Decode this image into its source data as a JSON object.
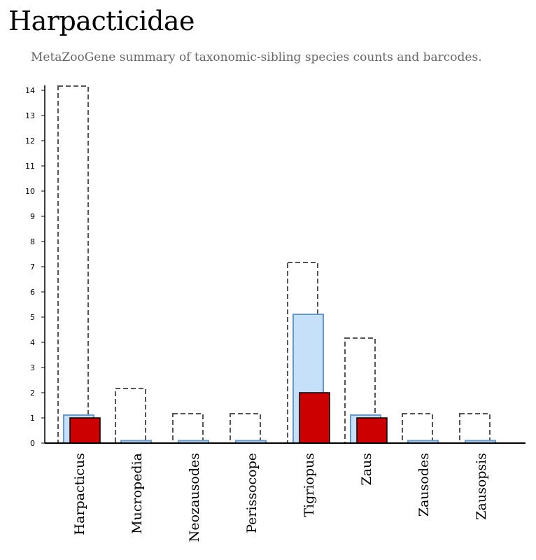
{
  "page": {
    "title": "Harpacticidae",
    "subtitle": "MetaZooGene summary of taxonomic-sibling species counts and barcodes."
  },
  "chart_data": {
    "type": "bar",
    "categories": [
      "Harpacticus",
      "Mucropedia",
      "Neozausodes",
      "Perissocope",
      "Tigriopus",
      "Zaus",
      "Zausodes",
      "Zausopsis"
    ],
    "series": [
      {
        "values": [
          14,
          2,
          1,
          1,
          7,
          4,
          1,
          1
        ],
        "style": "dashed-outline",
        "color": "#555555"
      },
      {
        "values": [
          1,
          0,
          0,
          0,
          5,
          1,
          0,
          0
        ],
        "style": "filled",
        "color": "#c6e0fa",
        "stroke": "#6699cc"
      },
      {
        "values": [
          1,
          0,
          0,
          0,
          2,
          1,
          0,
          0
        ],
        "style": "filled",
        "color": "#cc0000",
        "stroke": "#000000"
      }
    ],
    "yticks": [
      0,
      1,
      2,
      3,
      4,
      5,
      6,
      7,
      8,
      9,
      10,
      11,
      12,
      13,
      14
    ],
    "ylim": [
      0,
      14.2
    ],
    "grid": false
  }
}
